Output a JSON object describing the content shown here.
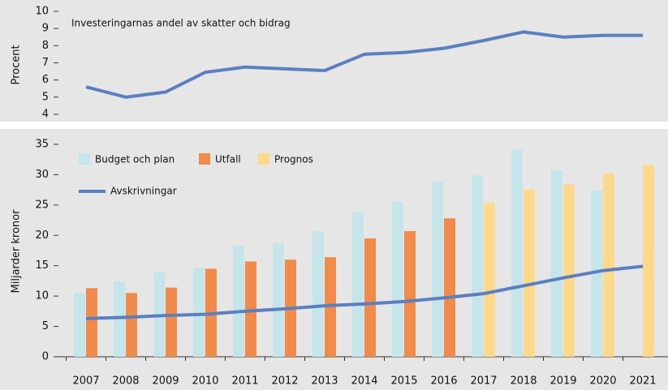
{
  "chart_data": [
    {
      "type": "line",
      "annotation": "Investeringarnas andel av skatter och bidrag",
      "y_label": "Procent",
      "values": [
        5.6,
        5.0,
        5.3,
        6.45,
        6.75,
        6.65,
        6.55,
        7.5,
        7.6,
        7.85,
        8.3,
        8.8,
        8.5,
        8.6,
        8.6
      ],
      "color": "#5b7fc0",
      "ylim": [
        4,
        10
      ],
      "yticks": [
        4,
        5,
        6,
        7,
        8,
        9,
        10
      ]
    },
    {
      "type": "bar",
      "y_label": "Miljarder kronor",
      "categories": [
        "2007",
        "2008",
        "2009",
        "2010",
        "2011",
        "2012",
        "2013",
        "2014",
        "2015",
        "2016",
        "2017",
        "2018",
        "2019",
        "2020",
        "2021"
      ],
      "series": [
        {
          "name": "Budget och plan",
          "color": "#c6e5ea",
          "values": [
            10.5,
            12.4,
            14.0,
            14.7,
            18.3,
            18.7,
            20.7,
            23.8,
            25.6,
            28.9,
            29.9,
            34.1,
            30.7,
            27.4,
            null
          ]
        },
        {
          "name": "Utfall",
          "color": "#f08b4c",
          "values": [
            11.3,
            10.5,
            11.4,
            14.5,
            15.7,
            16.0,
            16.4,
            19.5,
            20.7,
            22.8,
            null,
            null,
            null,
            null,
            null
          ]
        },
        {
          "name": "Prognos",
          "color": "#fdd98b",
          "values": [
            null,
            null,
            null,
            null,
            null,
            null,
            null,
            null,
            null,
            null,
            25.3,
            27.6,
            28.4,
            30.2,
            31.6
          ]
        },
        {
          "name": "Avskrivningar",
          "type": "line",
          "color": "#5b7fc0",
          "values": [
            6.3,
            6.5,
            6.8,
            7.0,
            7.5,
            7.9,
            8.4,
            8.7,
            9.1,
            9.7,
            10.4,
            11.7,
            13.0,
            14.2,
            14.9
          ]
        }
      ],
      "ylim": [
        0,
        35
      ],
      "yticks": [
        0,
        5,
        10,
        15,
        20,
        25,
        30,
        35
      ]
    }
  ]
}
